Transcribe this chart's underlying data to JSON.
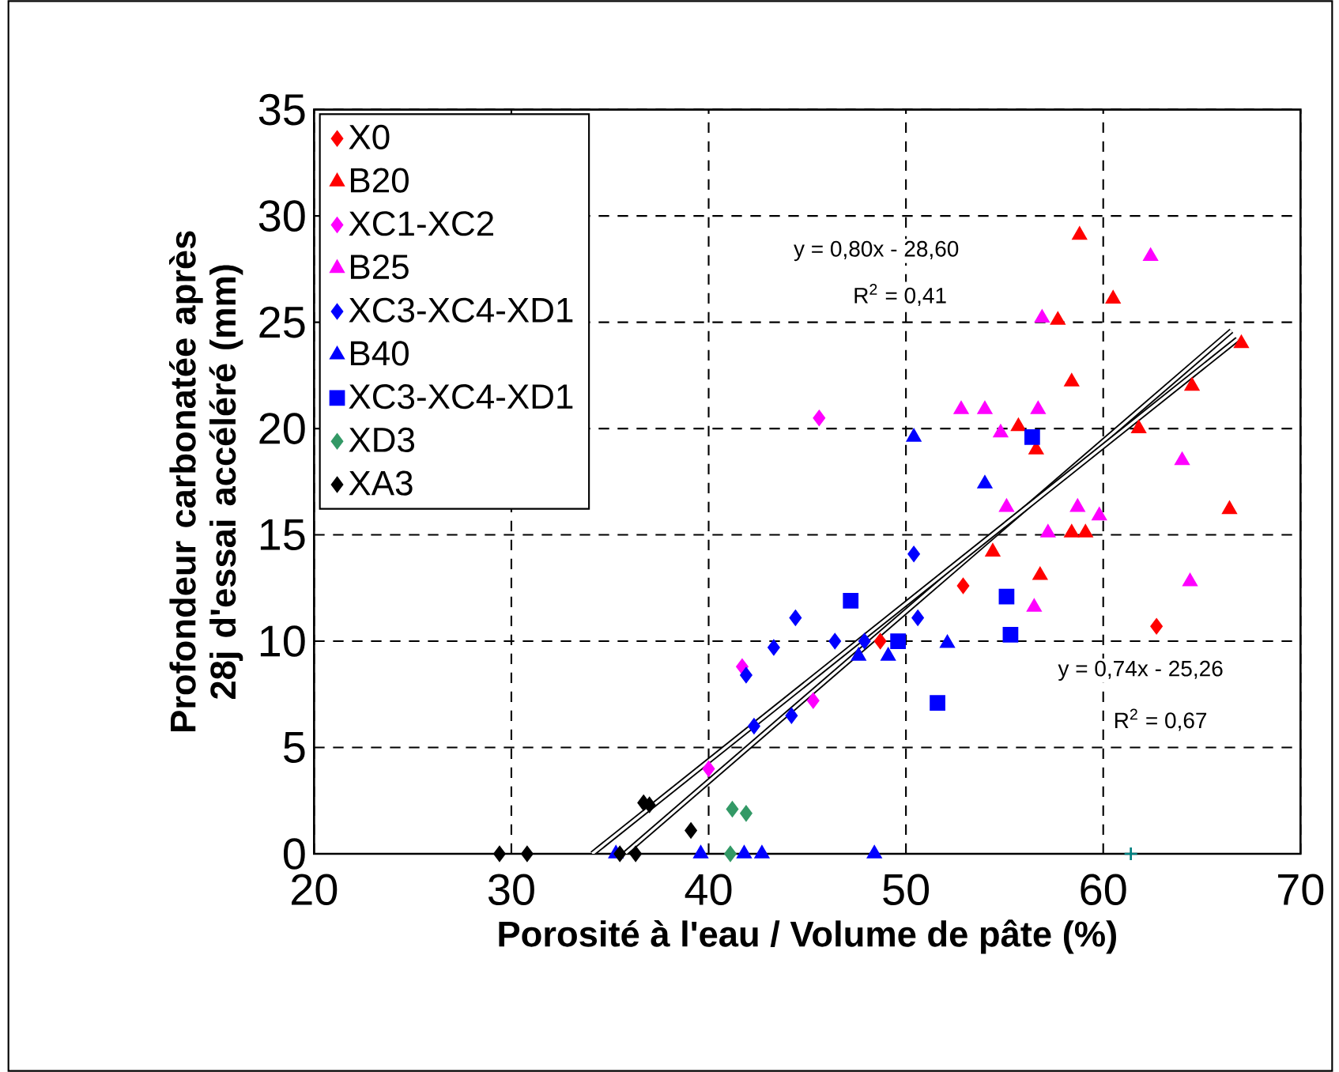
{
  "chart_data": {
    "type": "scatter",
    "xlabel": "Porosité à l'eau / Volume de pâte (%)",
    "ylabel": "Profondeur carbonatée après 28j d'essai accéléré (mm)",
    "xlim": [
      20,
      70
    ],
    "ylim": [
      0,
      35
    ],
    "xticks": [
      20,
      30,
      40,
      50,
      60,
      70
    ],
    "yticks": [
      0,
      5,
      10,
      15,
      20,
      25,
      30,
      35
    ],
    "grid": true,
    "legend": "top left",
    "series": [
      {
        "name": "X0",
        "color": "#ff0000",
        "marker": "diamond",
        "x": [
          52.9,
          62.7,
          48.7
        ],
        "values": [
          12.6,
          10.7,
          10.0
        ]
      },
      {
        "name": "B20",
        "color": "#ff0000",
        "marker": "triangle",
        "x": [
          58.8,
          60.5,
          57.7,
          58.4,
          64.5,
          55.7,
          56.6,
          61.8,
          67.0,
          66.4,
          58.4,
          59.1,
          54.4,
          56.8
        ],
        "values": [
          29.1,
          26.1,
          25.1,
          22.2,
          22.0,
          20.1,
          19.0,
          20.0,
          24.0,
          16.2,
          15.1,
          15.1,
          14.2,
          13.1
        ]
      },
      {
        "name": "XC1-XC2",
        "color": "#ff00ff",
        "marker": "diamond",
        "x": [
          45.6,
          45.3,
          40.0,
          41.7
        ],
        "values": [
          20.5,
          7.2,
          4.0,
          8.8
        ]
      },
      {
        "name": "B25",
        "color": "#ff00ff",
        "marker": "triangle",
        "x": [
          62.4,
          56.9,
          52.8,
          54.0,
          56.7,
          54.8,
          64.0,
          55.1,
          58.7,
          59.8,
          57.2,
          64.4,
          56.5
        ],
        "values": [
          28.1,
          25.2,
          20.9,
          20.9,
          20.9,
          19.8,
          18.5,
          16.3,
          16.3,
          15.9,
          15.1,
          12.8,
          11.6
        ]
      },
      {
        "name": "XC3-XC4-XD1",
        "color": "#0000ff",
        "marker": "diamond",
        "x": [
          50.4,
          50.6,
          44.4,
          43.3,
          46.4,
          41.9,
          44.2,
          42.3,
          47.9
        ],
        "values": [
          14.1,
          11.1,
          11.1,
          9.7,
          10.0,
          8.4,
          6.5,
          6.0,
          10.0
        ]
      },
      {
        "name": "B40",
        "color": "#0000ff",
        "marker": "triangle",
        "x": [
          50.4,
          54.0,
          52.1,
          47.6,
          49.1,
          48.4,
          35.3,
          39.6,
          41.8,
          42.7
        ],
        "values": [
          19.6,
          17.4,
          9.9,
          9.3,
          9.3,
          0,
          0,
          0,
          0,
          0
        ]
      },
      {
        "name": "XC3-XC4-XD1",
        "color": "#0000ff",
        "marker": "square",
        "x": [
          56.4,
          47.2,
          55.1,
          55.3,
          49.6,
          51.6
        ],
        "values": [
          19.6,
          11.9,
          12.1,
          10.3,
          10.0,
          7.1
        ]
      },
      {
        "name": "XD3",
        "color": "#339966",
        "marker": "diamond",
        "x": [
          41.2,
          41.9,
          41.1
        ],
        "values": [
          2.1,
          1.9,
          0
        ]
      },
      {
        "name": "XA3",
        "color": "#000000",
        "marker": "diamond",
        "x": [
          29.4,
          30.8,
          35.5,
          36.3,
          36.7,
          37.0,
          39.1
        ],
        "values": [
          0,
          0,
          0,
          0,
          2.4,
          2.3,
          1.1
        ]
      },
      {
        "color": "#008080",
        "marker": "cross",
        "x": [
          61.4
        ],
        "values": [
          0
        ]
      },
      {
        "type": "line",
        "color": "#000000",
        "x": [
          35.75,
          66.5
        ],
        "values": [
          0,
          24.6
        ]
      },
      {
        "type": "line",
        "color": "#000000",
        "x": [
          34.1,
          66.8
        ],
        "values": [
          0,
          24.2
        ]
      }
    ],
    "annotations": [
      "y = 0,80x - 28,60",
      "R$^{2}$ = 0,41",
      "y = 0,74x - 25,26",
      "R$^{2}$ = 0,67"
    ]
  }
}
